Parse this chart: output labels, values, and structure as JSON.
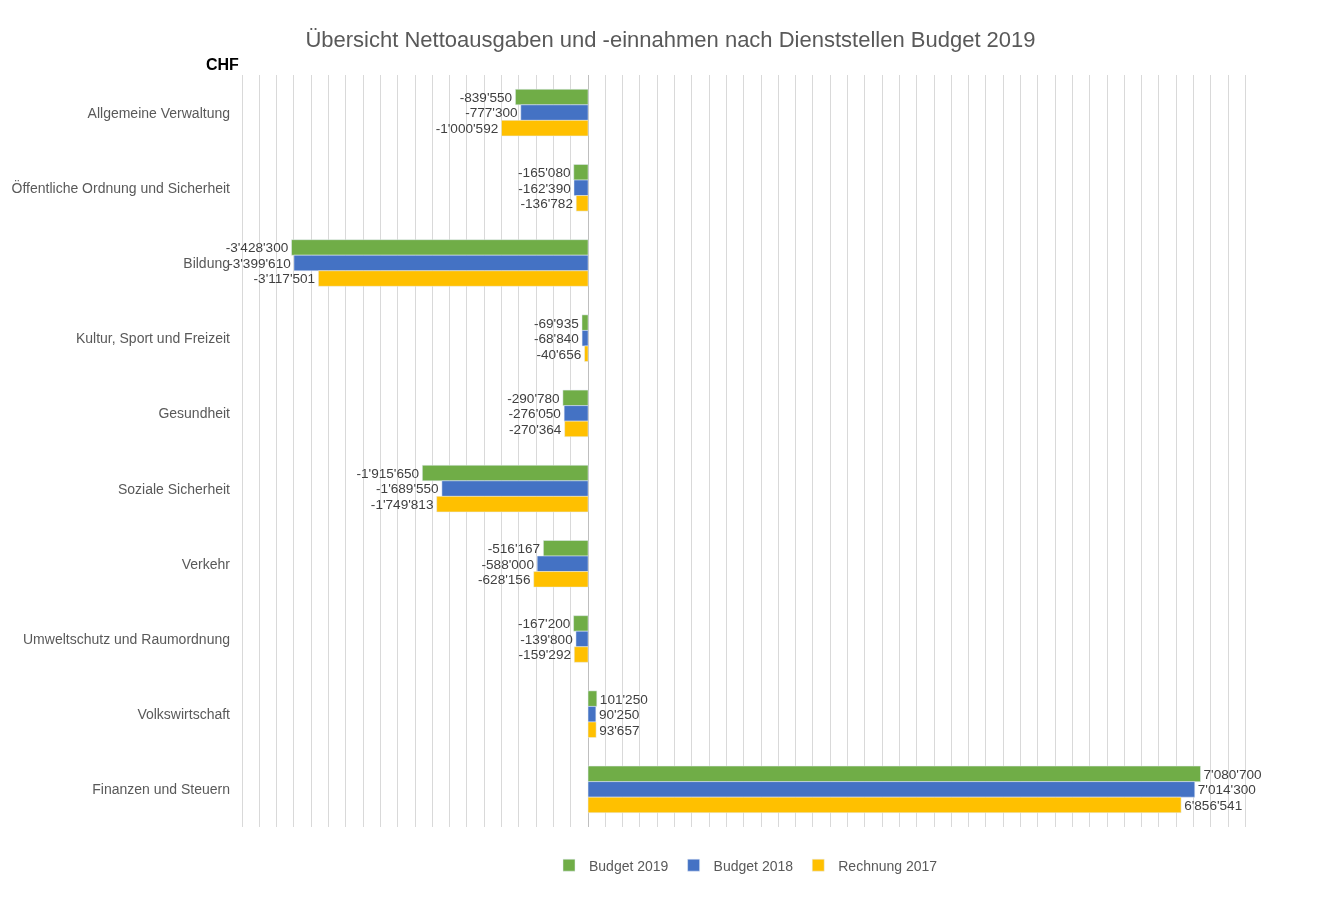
{
  "chart_data": {
    "type": "bar",
    "orientation": "horizontal",
    "title": "Übersicht Nettoausgaben und -einnahmen nach Dienststellen Budget 2019",
    "ylabel": "CHF",
    "categories": [
      "Allgemeine Verwaltung",
      "Öffentliche Ordnung und Sicherheit",
      "Bildung",
      "Kultur, Sport und Freizeit",
      "Gesundheit",
      "Soziale Sicherheit",
      "Verkehr",
      "Umweltschutz und Raumordnung",
      "Volkswirtschaft",
      "Finanzen und Steuern"
    ],
    "series": [
      {
        "name": "Budget 2019",
        "color": "#70ad47",
        "values": [
          -839550,
          -165080,
          -3428300,
          -69935,
          -290780,
          -1915650,
          -516167,
          -167200,
          101250,
          7080700
        ],
        "value_labels": [
          "-839'550",
          "-165'080",
          "-3'428'300",
          "-69'935",
          "-290'780",
          "-1'915'650",
          "-516'167",
          "-167'200",
          "101'250",
          "7'080'700"
        ]
      },
      {
        "name": "Budget 2018",
        "color": "#4472c4",
        "values": [
          -777300,
          -162390,
          -3399610,
          -68840,
          -276050,
          -1689550,
          -588000,
          -139800,
          90250,
          7014300
        ],
        "value_labels": [
          "-777'300",
          "-162'390",
          "-3'399'610",
          "-68'840",
          "-276'050",
          "-1'689'550",
          "-588'000",
          "-139'800",
          "90'250",
          "7'014'300"
        ]
      },
      {
        "name": "Rechnung 2017",
        "color": "#ffc000",
        "values": [
          -1000592,
          -136782,
          -3117501,
          -40656,
          -270364,
          -1749813,
          -628156,
          -159292,
          93657,
          6856541
        ],
        "value_labels": [
          "-1'000'592",
          "-136'782",
          "-3'117'501",
          "-40'656",
          "-270'364",
          "-1'749'813",
          "-628'156",
          "-159'292",
          "93'657",
          "6'856'541"
        ]
      }
    ],
    "grid": "x",
    "legend": "bottom",
    "tick_labels": "y"
  }
}
